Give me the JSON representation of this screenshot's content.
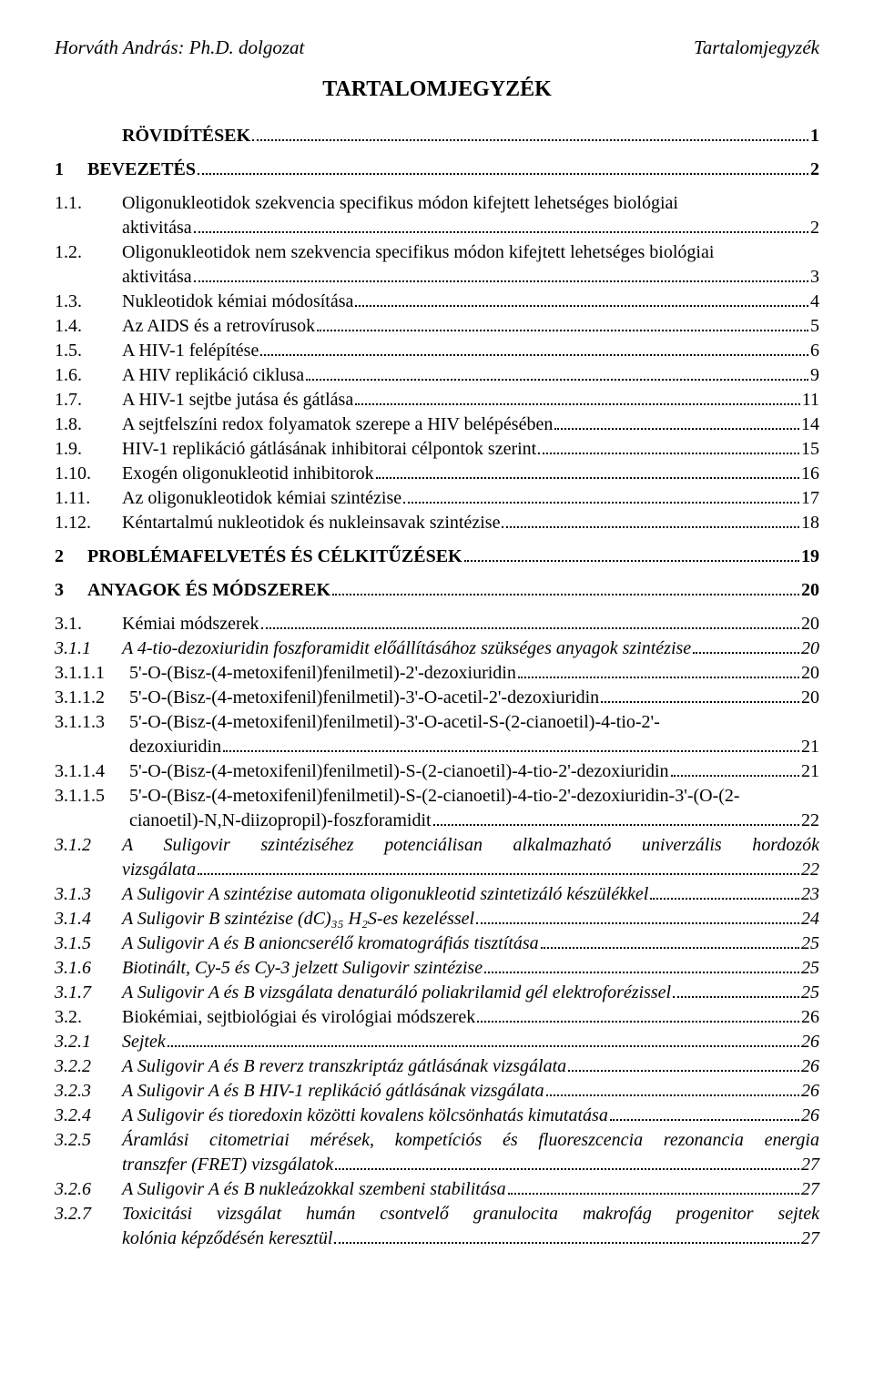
{
  "header": {
    "left": "Horváth András: Ph.D. dolgozat",
    "right": "Tartalomjegyzék"
  },
  "title": "TARTALOMJEGYZÉK",
  "toc": [
    {
      "num": "",
      "title": "RÖVIDÍTÉSEK",
      "page": "1",
      "bold": true,
      "numClass": "numcol-15"
    },
    {
      "spacer": true
    },
    {
      "num": "1",
      "title": "BEVEZETÉS",
      "page": "2",
      "bold": true,
      "numClass": "numcol-1"
    },
    {
      "spacer": true
    },
    {
      "num": "1.1.",
      "title": "Oligonukleotidok szekvencia specifikus módon kifejtett lehetséges biológiai",
      "numClass": "numcol-15",
      "noPage": true
    },
    {
      "num": "",
      "title": "aktivitása",
      "page": "2",
      "numClass": "numcol-15"
    },
    {
      "num": "1.2.",
      "title": "Oligonukleotidok nem szekvencia specifikus módon kifejtett lehetséges biológiai",
      "numClass": "numcol-15",
      "noPage": true
    },
    {
      "num": "",
      "title": "aktivitása",
      "page": "3",
      "numClass": "numcol-15"
    },
    {
      "num": "1.3.",
      "title": "Nukleotidok kémiai módosítása",
      "page": "4",
      "numClass": "numcol-15"
    },
    {
      "num": "1.4.",
      "title": "Az AIDS és a retrovírusok",
      "page": "5",
      "numClass": "numcol-15"
    },
    {
      "num": "1.5.",
      "title": "A HIV-1 felépítése",
      "page": "6",
      "numClass": "numcol-15"
    },
    {
      "num": "1.6.",
      "title": "A HIV replikáció ciklusa",
      "page": "9",
      "numClass": "numcol-15"
    },
    {
      "num": "1.7.",
      "title": "A HIV-1 sejtbe jutása és gátlása",
      "page": "11",
      "numClass": "numcol-15"
    },
    {
      "num": "1.8.",
      "title": "A sejtfelszíni redox folyamatok szerepe a HIV belépésében",
      "page": "14",
      "numClass": "numcol-15"
    },
    {
      "num": "1.9.",
      "title": "HIV-1 replikáció gátlásának inhibitorai célpontok szerint",
      "page": "15",
      "numClass": "numcol-15"
    },
    {
      "num": "1.10.",
      "title": "Exogén oligonukleotid inhibitorok",
      "page": "16",
      "numClass": "numcol-15"
    },
    {
      "num": "1.11.",
      "title": "Az oligonukleotidok kémiai szintézise",
      "page": "17",
      "numClass": "numcol-15"
    },
    {
      "num": "1.12.",
      "title": "Kéntartalmú nukleotidok és nukleinsavak szintézise",
      "page": "18",
      "numClass": "numcol-15"
    },
    {
      "spacer": true
    },
    {
      "num": "2",
      "title": "PROBLÉMAFELVETÉS ÉS CÉLKITŰZÉSEK",
      "page": "19",
      "bold": true,
      "numClass": "numcol-1"
    },
    {
      "spacer": true
    },
    {
      "num": "3",
      "title": "ANYAGOK ÉS MÓDSZEREK",
      "page": "20",
      "bold": true,
      "numClass": "numcol-1"
    },
    {
      "spacer": true
    },
    {
      "num": "3.1.",
      "title": "Kémiai módszerek",
      "page": "20",
      "numClass": "numcol-15"
    },
    {
      "num": "3.1.1",
      "title": "A 4-tio-dezoxiuridin foszforamidit előállításához szükséges anyagok szintézise",
      "page": "20",
      "italic": true,
      "numClass": "numcol-2"
    },
    {
      "num": "3.1.1.1",
      "title": "5'-O-(Bisz-(4-metoxifenil)fenilmetil)-2'-dezoxiuridin",
      "page": "20",
      "numClass": "numcol-3"
    },
    {
      "num": "3.1.1.2",
      "title": "5'-O-(Bisz-(4-metoxifenil)fenilmetil)-3'-O-acetil-2'-dezoxiuridin",
      "page": "20",
      "numClass": "numcol-3"
    },
    {
      "num": "3.1.1.3",
      "title": "5'-O-(Bisz-(4-metoxifenil)fenilmetil)-3'-O-acetil-S-(2-cianoetil)-4-tio-2'-",
      "numClass": "numcol-3",
      "noPage": true
    },
    {
      "num": "",
      "title": "dezoxiuridin",
      "page": "21",
      "numClass": "numcol-3"
    },
    {
      "num": "3.1.1.4",
      "title": "5'-O-(Bisz-(4-metoxifenil)fenilmetil)-S-(2-cianoetil)-4-tio-2'-dezoxiuridin",
      "page": "21",
      "numClass": "numcol-3"
    },
    {
      "num": "3.1.1.5",
      "title": "5'-O-(Bisz-(4-metoxifenil)fenilmetil)-S-(2-cianoetil)-4-tio-2'-dezoxiuridin-3'-(O-(2-",
      "numClass": "numcol-3",
      "noPage": true
    },
    {
      "num": "",
      "title": "cianoetil)-N,N-diizopropil)-foszforamidit",
      "page": "22",
      "numClass": "numcol-3"
    },
    {
      "num": "3.1.2",
      "title": "A Suligovir szintéziséhez potenciálisan alkalmazható univerzális hordozók",
      "italic": true,
      "numClass": "numcol-2",
      "noPage": true,
      "justify": true
    },
    {
      "num": "",
      "title": "vizsgálata",
      "page": "22",
      "italic": true,
      "numClass": "numcol-2"
    },
    {
      "num": "3.1.3",
      "title": "A Suligovir A szintézise automata oligonukleotid szintetizáló készülékkel",
      "page": "23",
      "italic": true,
      "numClass": "numcol-2"
    },
    {
      "num": "3.1.4",
      "title": "A Suligovir B szintézise (dC)₃₅ H₂S-es kezeléssel",
      "page": "24",
      "italic": true,
      "numClass": "numcol-2"
    },
    {
      "num": "3.1.5",
      "title": "A Suligovir A és B anioncserélő kromatográfiás tisztítása",
      "page": "25",
      "italic": true,
      "numClass": "numcol-2"
    },
    {
      "num": "3.1.6",
      "title": "Biotinált, Cy-5 és Cy-3 jelzett Suligovir szintézise",
      "page": "25",
      "italic": true,
      "numClass": "numcol-2"
    },
    {
      "num": "3.1.7",
      "title": "A Suligovir A és B vizsgálata denaturáló poliakrilamid gél elektroforézissel",
      "page": "25",
      "italic": true,
      "numClass": "numcol-2"
    },
    {
      "num": "3.2.",
      "title": "Biokémiai, sejtbiológiai és virológiai módszerek",
      "page": "26",
      "numClass": "numcol-15"
    },
    {
      "num": "3.2.1",
      "title": "Sejtek",
      "page": "26",
      "italic": true,
      "numClass": "numcol-2"
    },
    {
      "num": "3.2.2",
      "title": "A Suligovir A és B reverz transzkriptáz gátlásának vizsgálata",
      "page": "26",
      "italic": true,
      "numClass": "numcol-2"
    },
    {
      "num": "3.2.3",
      "title": "A Suligovir A és B HIV-1 replikáció gátlásának vizsgálata",
      "page": "26",
      "italic": true,
      "numClass": "numcol-2"
    },
    {
      "num": "3.2.4",
      "title": "A Suligovir és tioredoxin közötti kovalens kölcsönhatás kimutatása",
      "page": "26",
      "italic": true,
      "numClass": "numcol-2"
    },
    {
      "num": "3.2.5",
      "title": "Áramlási citometriai mérések, kompetíciós és fluoreszcencia rezonancia energia",
      "italic": true,
      "numClass": "numcol-2",
      "noPage": true,
      "justify": true
    },
    {
      "num": "",
      "title": "transzfer (FRET) vizsgálatok",
      "page": "27",
      "italic": true,
      "numClass": "numcol-2"
    },
    {
      "num": "3.2.6",
      "title": "A Suligovir A és B nukleázokkal szembeni stabilitása",
      "page": "27",
      "italic": true,
      "numClass": "numcol-2"
    },
    {
      "num": "3.2.7",
      "title": "Toxicitási vizsgálat humán csontvelő granulocita makrofág progenitor sejtek",
      "italic": true,
      "numClass": "numcol-2",
      "noPage": true,
      "justify": true
    },
    {
      "num": "",
      "title": "kolónia képződésén keresztül",
      "page": "27",
      "italic": true,
      "numClass": "numcol-2"
    }
  ]
}
